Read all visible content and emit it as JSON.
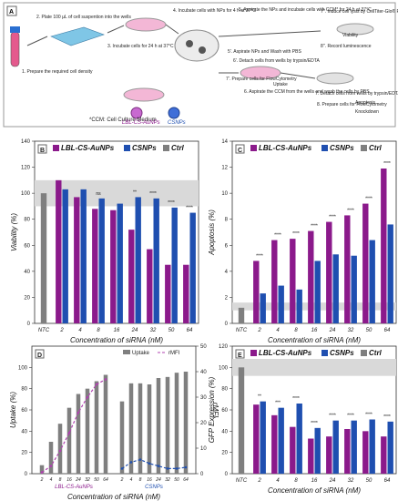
{
  "panel_a": {
    "letter": "A",
    "steps": [
      "1. Prepare the required cell density",
      "2. Plate 100 µL of cell suspention into the wells",
      "3. Incubate cells for 24 h at 37°C",
      "4. Incubate cells with NPs for 4 h at 37°C",
      "5. Aspirate the NPs and incubate cells with CCM* for 24 h at 37°C",
      "5'. Aspirate NPs and Wash with PBS",
      "6'. Detach cells from wells by trypsin/EDTA",
      "7'. Prepare cells for FlowCytometry",
      "Uptake",
      "6. Aspirate the CCM from the wells and wash the cells by PBS",
      "7''. Induce cell lysis by CellTiter-Glo® Reagent",
      "Viability",
      "8''. Record luminescence",
      "7. Detach cells from wells by trypsin/EDTA",
      "8. Prepare cells for FlowCytometry",
      "Apoptosis",
      "Knockdown"
    ],
    "footnote": "*CCM: Cell Culture Medium",
    "np_labels": [
      "LBL-CS-AuNPs",
      "CSNPs"
    ]
  },
  "colors": {
    "lbl": "#8b1a8b",
    "cs": "#1f4fb0",
    "ctrl": "#7f7f7f",
    "band": "#d9d9d9",
    "mfi": "#b040b0"
  },
  "chart_data": [
    {
      "panel": "B",
      "type": "bar",
      "categories": [
        "NTC",
        "2",
        "4",
        "8",
        "16",
        "24",
        "32",
        "50",
        "64"
      ],
      "series": [
        {
          "name": "LBL-CS-AuNPs",
          "values": [
            null,
            110,
            97,
            88,
            87,
            72,
            57,
            45,
            45
          ]
        },
        {
          "name": "CSNPs",
          "values": [
            null,
            103,
            103,
            96,
            92,
            97,
            96,
            89,
            85
          ]
        },
        {
          "name": "Ctrl",
          "values": [
            100,
            null,
            null,
            null,
            null,
            null,
            null,
            null,
            null
          ]
        }
      ],
      "annotations": [
        "",
        "",
        "",
        "ns",
        "",
        "**",
        "****",
        "****",
        "****"
      ],
      "xlabel": "Concentration of siRNA (nM)",
      "ylabel": "Viability (%)",
      "ylim": [
        0,
        140
      ],
      "yticks": [
        0,
        20,
        40,
        60,
        80,
        100,
        120,
        140
      ],
      "band": [
        90,
        110
      ]
    },
    {
      "panel": "C",
      "type": "bar",
      "categories": [
        "NTC",
        "2",
        "4",
        "8",
        "16",
        "24",
        "32",
        "50",
        "64"
      ],
      "series": [
        {
          "name": "LBL-CS-AuNPs",
          "values": [
            null,
            4.8,
            6.4,
            6.5,
            7.1,
            7.8,
            8.3,
            9.2,
            11.9
          ]
        },
        {
          "name": "CSNPs",
          "values": [
            null,
            2.3,
            2.9,
            2.6,
            4.8,
            5.3,
            5.2,
            6.4,
            7.6
          ]
        },
        {
          "name": "Ctrl",
          "values": [
            1.2,
            null,
            null,
            null,
            null,
            null,
            null,
            null,
            null
          ]
        }
      ],
      "annotations": [
        "",
        "****",
        "****",
        "****",
        "****",
        "****",
        "****",
        "****",
        "****"
      ],
      "xlabel": "Concentration of siRNA (nM)",
      "ylabel": "Apoptosis (%)",
      "ylim": [
        0,
        14
      ],
      "yticks": [
        0,
        2,
        4,
        6,
        8,
        10,
        12,
        14
      ],
      "band": [
        1,
        1.6
      ]
    },
    {
      "panel": "D",
      "type": "bar",
      "groups": [
        "LBL-CS-AuNPs",
        "CSNPs"
      ],
      "categories": [
        "2",
        "4",
        "8",
        "16",
        "24",
        "32",
        "50",
        "64"
      ],
      "series": [
        {
          "name": "Uptake",
          "group": "LBL-CS-AuNPs",
          "values": [
            8,
            30,
            47,
            62,
            75,
            80,
            87,
            93
          ]
        },
        {
          "name": "Uptake",
          "group": "CSNPs",
          "values": [
            68,
            85,
            85,
            84,
            90,
            91,
            95,
            96
          ]
        },
        {
          "name": "rMFI",
          "group": "LBL-CS-AuNPs",
          "values": [
            0.5,
            3,
            9,
            16,
            24,
            30,
            35,
            37
          ]
        },
        {
          "name": "rMFI",
          "group": "CSNPs",
          "values": [
            2,
            4.5,
            5.5,
            4,
            3,
            2,
            2,
            2.5
          ]
        }
      ],
      "xlabel": "Concentration of siRNA (nM)",
      "ylabel": "Uptake (%)",
      "y2label": "rMFI",
      "ylim": [
        0,
        120
      ],
      "yticks": [
        0,
        20,
        40,
        60,
        80,
        100
      ],
      "y2lim": [
        0,
        50
      ],
      "y2ticks": [
        0,
        10,
        20,
        30,
        40,
        50
      ],
      "legend": [
        "Uptake",
        "rMFI"
      ]
    },
    {
      "panel": "E",
      "type": "bar",
      "categories": [
        "NTC",
        "2",
        "4",
        "8",
        "16",
        "24",
        "32",
        "50",
        "64"
      ],
      "series": [
        {
          "name": "LBL-CS-AuNPs",
          "values": [
            null,
            65,
            55,
            44,
            33,
            35,
            42,
            40,
            35
          ]
        },
        {
          "name": "CSNPs",
          "values": [
            null,
            68,
            62,
            66,
            43,
            50,
            50,
            51,
            49
          ]
        },
        {
          "name": "Ctrl",
          "values": [
            100,
            null,
            null,
            null,
            null,
            null,
            null,
            null,
            null
          ]
        }
      ],
      "annotations": [
        "",
        "**",
        "***",
        "****",
        "****",
        "****",
        "****",
        "****",
        "****"
      ],
      "xlabel": "Concentration of siRNA (nM)",
      "ylabel": "GFP Expression (%)",
      "ylim": [
        0,
        120
      ],
      "yticks": [
        0,
        20,
        40,
        60,
        80,
        100,
        120
      ],
      "band": [
        92,
        108
      ]
    }
  ]
}
